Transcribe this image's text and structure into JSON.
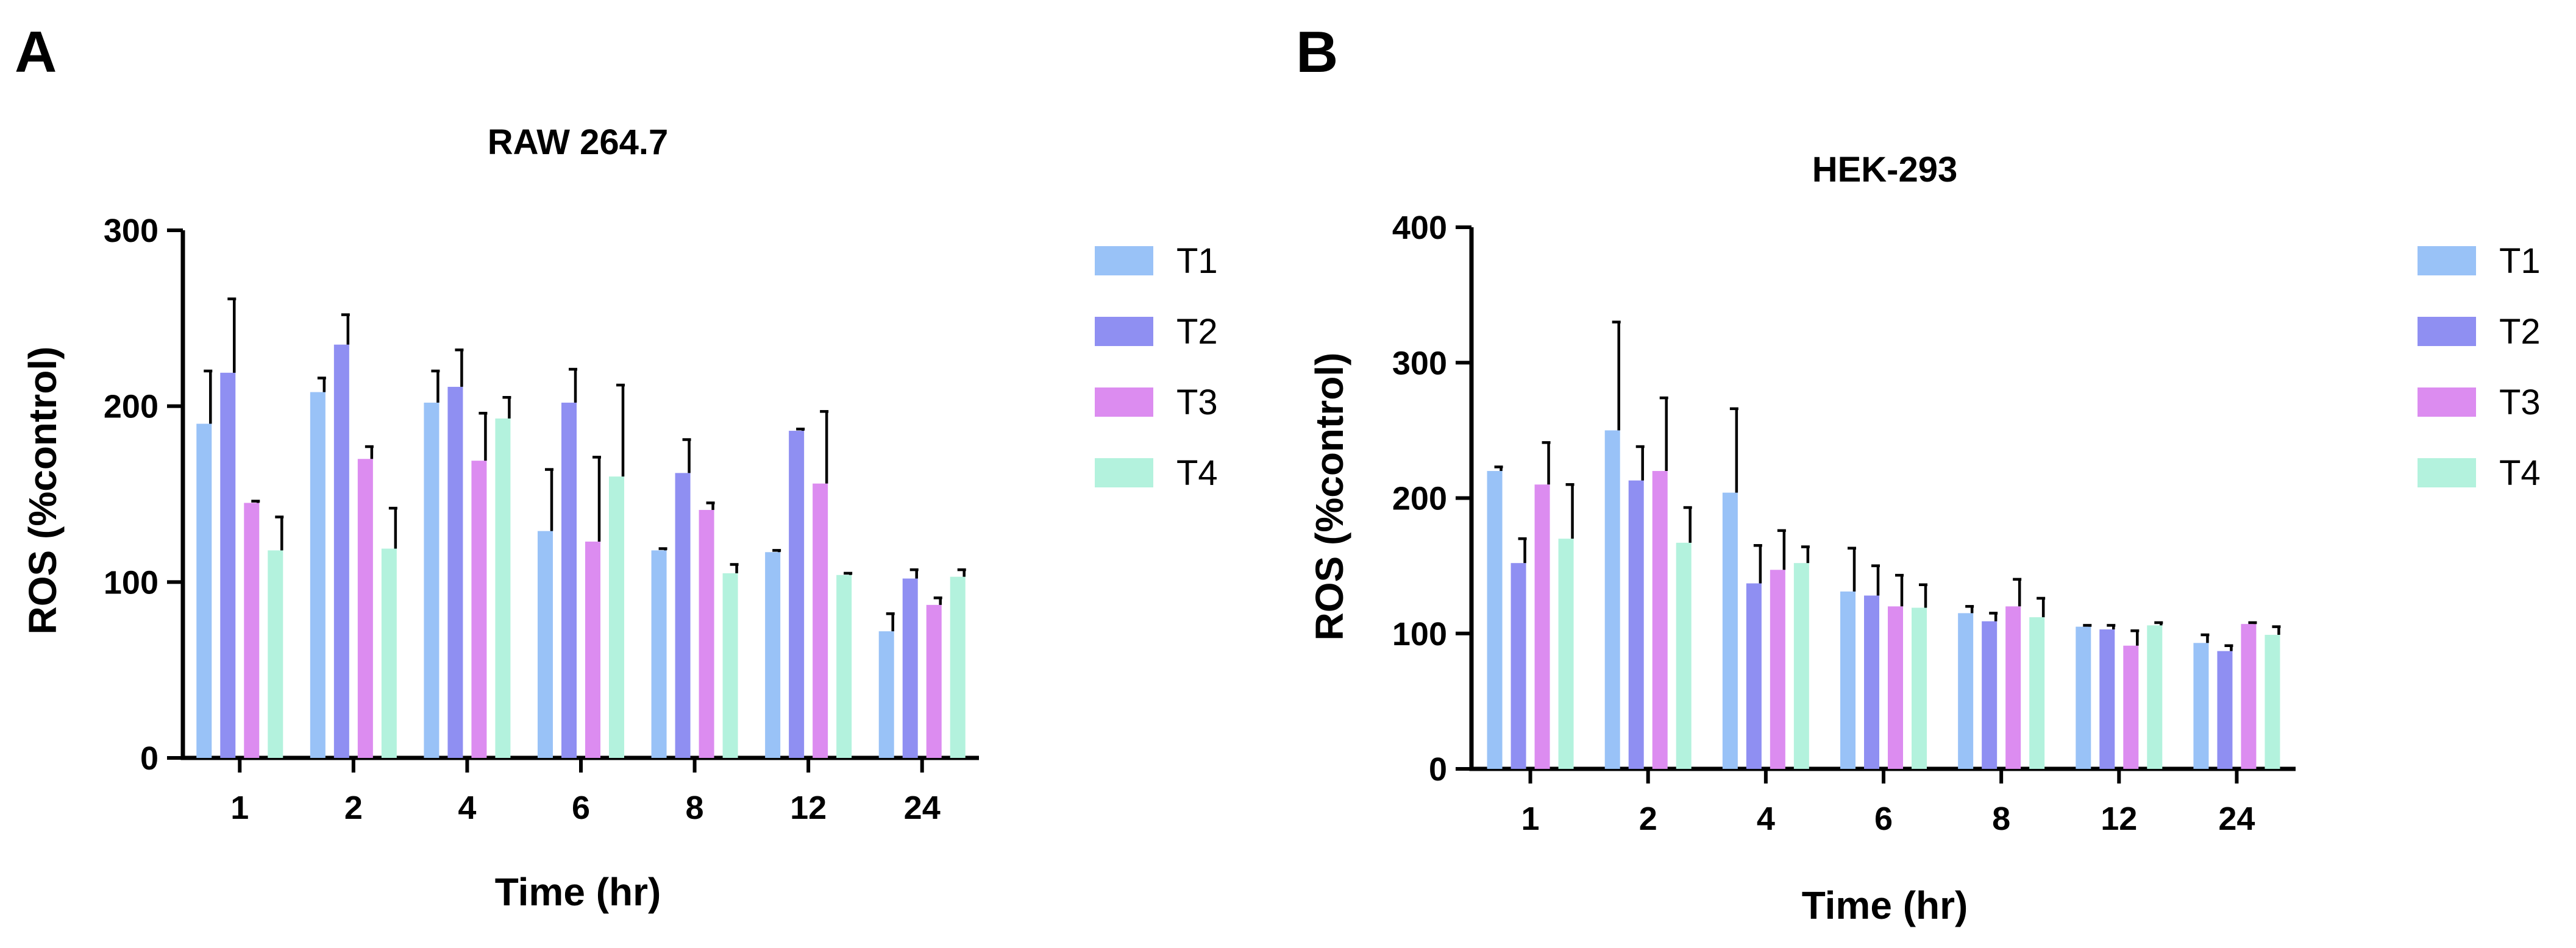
{
  "colors": {
    "T1": "#99c2f7",
    "T2": "#8f8ff2",
    "T3": "#dc8cf0",
    "T4": "#b3f2dd"
  },
  "chart_data": [
    {
      "panel": "A",
      "type": "bar",
      "title": "RAW 264.7",
      "xlabel": "Time (hr)",
      "ylabel": "ROS (%control)",
      "ylim": [
        0,
        300
      ],
      "yticks": [
        "0",
        "100",
        "200",
        "300"
      ],
      "categories": [
        "1",
        "2",
        "4",
        "6",
        "8",
        "12",
        "24"
      ],
      "legend_position": "right",
      "series": [
        {
          "name": "T1",
          "values": [
            190,
            208,
            202,
            129,
            118,
            117,
            72
          ],
          "errors": [
            30,
            8,
            18,
            35,
            1,
            1,
            10
          ]
        },
        {
          "name": "T2",
          "values": [
            219,
            235,
            211,
            202,
            162,
            186,
            102
          ],
          "errors": [
            42,
            17,
            21,
            19,
            19,
            1,
            5
          ]
        },
        {
          "name": "T3",
          "values": [
            145,
            170,
            169,
            123,
            141,
            156,
            87
          ],
          "errors": [
            1,
            7,
            27,
            48,
            4,
            41,
            4
          ]
        },
        {
          "name": "T4",
          "values": [
            118,
            119,
            193,
            160,
            105,
            104,
            103
          ],
          "errors": [
            19,
            23,
            12,
            52,
            5,
            1,
            4
          ]
        }
      ]
    },
    {
      "panel": "B",
      "type": "bar",
      "title": "HEK-293",
      "xlabel": "Time (hr)",
      "ylabel": "ROS (%control)",
      "ylim": [
        0,
        400
      ],
      "yticks": [
        "0",
        "100",
        "200",
        "300",
        "400"
      ],
      "categories": [
        "1",
        "2",
        "4",
        "6",
        "8",
        "12",
        "24"
      ],
      "legend_position": "right",
      "series": [
        {
          "name": "T1",
          "values": [
            220,
            250,
            204,
            131,
            115,
            105,
            93
          ],
          "errors": [
            3,
            80,
            62,
            32,
            5,
            1,
            6
          ]
        },
        {
          "name": "T2",
          "values": [
            152,
            213,
            137,
            128,
            109,
            103,
            87
          ],
          "errors": [
            18,
            25,
            28,
            22,
            6,
            3,
            4
          ]
        },
        {
          "name": "T3",
          "values": [
            210,
            220,
            147,
            120,
            120,
            91,
            107
          ],
          "errors": [
            31,
            54,
            29,
            23,
            20,
            11,
            1
          ]
        },
        {
          "name": "T4",
          "values": [
            170,
            167,
            152,
            119,
            112,
            106,
            99
          ],
          "errors": [
            40,
            26,
            12,
            17,
            14,
            2,
            6
          ]
        }
      ]
    }
  ]
}
